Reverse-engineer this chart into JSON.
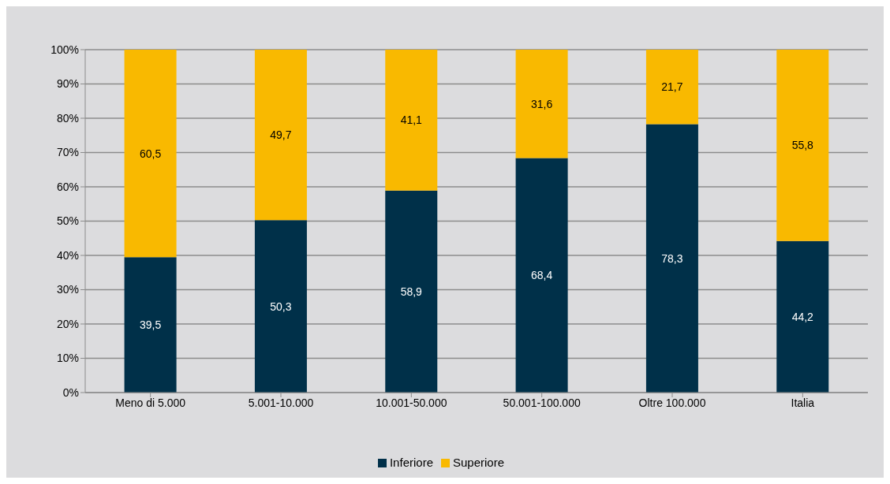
{
  "chart_data": {
    "type": "bar",
    "stacked": true,
    "categories": [
      "Meno di 5.000",
      "5.001-10.000",
      "10.001-50.000",
      "50.001-100.000",
      "Oltre 100.000",
      "Italia"
    ],
    "series": [
      {
        "name": "Inferiore",
        "color": "#003049",
        "values": [
          39.5,
          50.3,
          58.9,
          68.4,
          78.3,
          44.2
        ],
        "value_labels": [
          "39,5",
          "50,3",
          "58,9",
          "68,4",
          "78,3",
          "44,2"
        ]
      },
      {
        "name": "Superiore",
        "color": "#f9b900",
        "values": [
          60.5,
          49.7,
          41.1,
          31.6,
          21.7,
          55.8
        ],
        "value_labels": [
          "60,5",
          "49,7",
          "41,1",
          "31,6",
          "21,7",
          "55,8"
        ]
      }
    ],
    "ylim": [
      0,
      100
    ],
    "yticks": [
      {
        "value": 0,
        "label": "0%"
      },
      {
        "value": 10,
        "label": "10%"
      },
      {
        "value": 20,
        "label": "20%"
      },
      {
        "value": 30,
        "label": "30%"
      },
      {
        "value": 40,
        "label": "40%"
      },
      {
        "value": 50,
        "label": "50%"
      },
      {
        "value": 60,
        "label": "60%"
      },
      {
        "value": 70,
        "label": "70%"
      },
      {
        "value": 80,
        "label": "80%"
      },
      {
        "value": 90,
        "label": "90%"
      },
      {
        "value": 100,
        "label": "100%"
      }
    ],
    "grid": "y",
    "legend": "bottom"
  }
}
